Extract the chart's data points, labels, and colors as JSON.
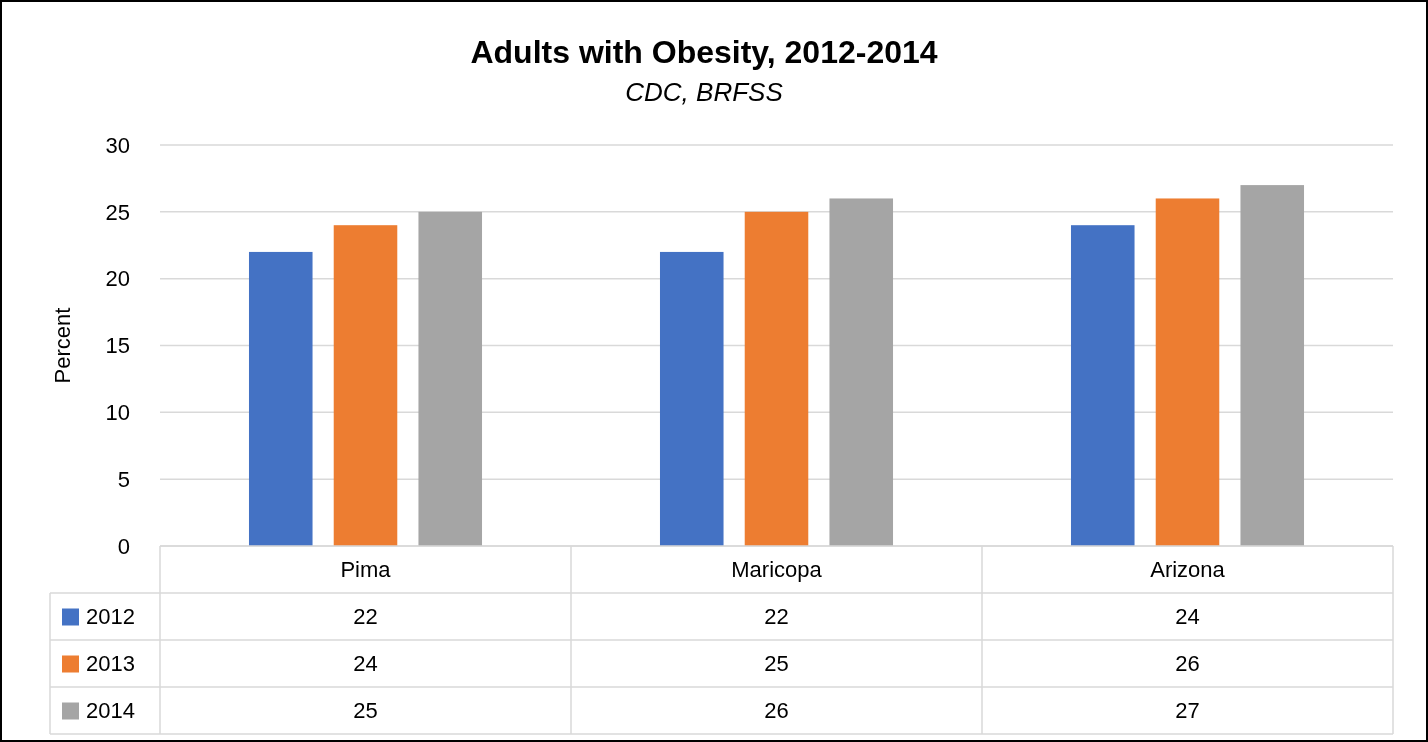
{
  "chart_data": {
    "type": "bar",
    "title": "Adults with Obesity, 2012-2014",
    "subtitle": "CDC, BRFSS",
    "ylabel": "Percent",
    "categories": [
      "Pima",
      "Maricopa",
      "Arizona"
    ],
    "series": [
      {
        "name": "2012",
        "color": "#4472c4",
        "values": [
          22,
          22,
          24
        ]
      },
      {
        "name": "2013",
        "color": "#ed7d31",
        "values": [
          24,
          25,
          26
        ]
      },
      {
        "name": "2014",
        "color": "#a5a5a5",
        "values": [
          25,
          26,
          27
        ]
      }
    ],
    "ylim": [
      0,
      30
    ],
    "yticks": [
      0,
      5,
      10,
      15,
      20,
      25,
      30
    ],
    "grid": "y",
    "legend": "bottom",
    "data_labels": true
  }
}
